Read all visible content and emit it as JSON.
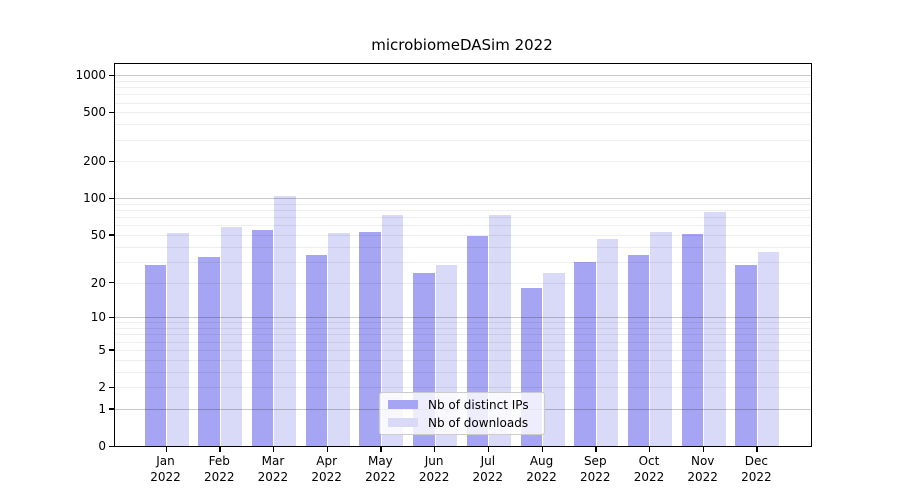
{
  "title": "microbiomeDASim 2022",
  "year_label": "2022",
  "chart_data": {
    "type": "bar",
    "title": "microbiomeDASim 2022",
    "categories": [
      "Jan 2022",
      "Feb 2022",
      "Mar 2022",
      "Apr 2022",
      "May 2022",
      "Jun 2022",
      "Jul 2022",
      "Aug 2022",
      "Sep 2022",
      "Oct 2022",
      "Nov 2022",
      "Dec 2022"
    ],
    "months": [
      "Jan",
      "Feb",
      "Mar",
      "Apr",
      "May",
      "Jun",
      "Jul",
      "Aug",
      "Sep",
      "Oct",
      "Nov",
      "Dec"
    ],
    "series": [
      {
        "name": "Nb of distinct IPs",
        "color": "#a5a5f3",
        "values": [
          28,
          33,
          55,
          34,
          53,
          24,
          49,
          18,
          30,
          34,
          51,
          28
        ]
      },
      {
        "name": "Nb of downloads",
        "color": "#d9d9f8",
        "values": [
          52,
          58,
          105,
          52,
          73,
          28,
          73,
          24,
          46,
          53,
          77,
          36
        ]
      }
    ],
    "yticks": [
      0,
      1,
      2,
      5,
      10,
      20,
      50,
      100,
      200,
      500,
      1000
    ],
    "yscale": "log10(value+1)",
    "ylim": [
      0,
      1165
    ],
    "xlabel": "",
    "ylabel": "",
    "grid": "horizontal",
    "legend_position": "lower center",
    "colors": {
      "grid_major": "#c9c9c9",
      "grid_minor": "#ececec",
      "axis": "#000000",
      "background": "#ffffff"
    }
  }
}
